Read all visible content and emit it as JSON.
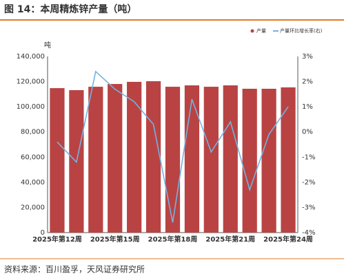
{
  "chart_data": {
    "type": "bar-line",
    "title": "图 14：本周精炼锌产量（吨）",
    "y_label": "吨",
    "source": "资料来源：百川盈孚，天风证券研究所",
    "categories": [
      "2025年第12周",
      null,
      null,
      "2025年第15周",
      null,
      null,
      "2025年第18周",
      null,
      null,
      "2025年第21周",
      null,
      null,
      "2025年第24周"
    ],
    "series": [
      {
        "name": "产量",
        "type": "bar",
        "color": "#b94343",
        "values": [
          114800,
          113200,
          115900,
          118100,
          119800,
          120300,
          115900,
          117000,
          115900,
          117000,
          114300,
          114300,
          115400
        ]
      },
      {
        "name": "产量环比增长率(右)",
        "type": "line",
        "axis": "y2",
        "color": "#74b3e0",
        "values": [
          -0.4,
          -1.2,
          2.4,
          1.7,
          1.2,
          0.3,
          -3.6,
          1.3,
          -0.8,
          0.4,
          -2.3,
          -0.1,
          1.0
        ]
      }
    ],
    "ylim": [
      0,
      140000
    ],
    "yticks": [
      0,
      {
        "value": 20000,
        "label": "20,000"
      },
      {
        "value": 40000,
        "label": "40,000"
      },
      {
        "value": 60000,
        "label": "60,000"
      },
      {
        "value": 80000,
        "label": "80,000"
      },
      {
        "value": 100000,
        "label": "100,000"
      },
      {
        "value": 120000,
        "label": "120,000"
      },
      {
        "value": 140000,
        "label": "140,000"
      }
    ],
    "y2lim": [
      -4,
      3
    ],
    "y2ticks": [
      {
        "value": -4,
        "label": "-4%"
      },
      {
        "value": -3,
        "label": "-3%"
      },
      {
        "value": -2,
        "label": "-2%"
      },
      {
        "value": -1,
        "label": "-1%"
      },
      {
        "value": 0,
        "label": "0%"
      },
      {
        "value": 1,
        "label": "1%"
      },
      {
        "value": 2,
        "label": "2%"
      },
      {
        "value": 3,
        "label": "3%"
      }
    ],
    "legend": "top-right"
  }
}
